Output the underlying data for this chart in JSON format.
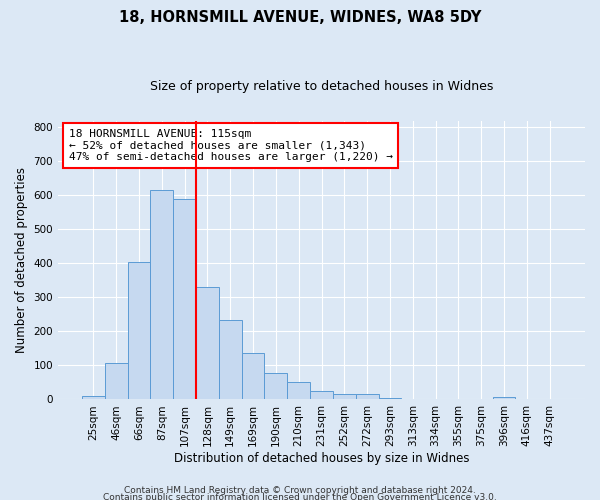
{
  "title": "18, HORNSMILL AVENUE, WIDNES, WA8 5DY",
  "subtitle": "Size of property relative to detached houses in Widnes",
  "xlabel": "Distribution of detached houses by size in Widnes",
  "ylabel": "Number of detached properties",
  "bar_labels": [
    "25sqm",
    "46sqm",
    "66sqm",
    "87sqm",
    "107sqm",
    "128sqm",
    "149sqm",
    "169sqm",
    "190sqm",
    "210sqm",
    "231sqm",
    "252sqm",
    "272sqm",
    "293sqm",
    "313sqm",
    "334sqm",
    "355sqm",
    "375sqm",
    "396sqm",
    "416sqm",
    "437sqm"
  ],
  "bar_values": [
    10,
    107,
    403,
    615,
    590,
    330,
    235,
    137,
    77,
    50,
    26,
    17,
    17,
    5,
    0,
    0,
    0,
    0,
    8,
    0,
    0
  ],
  "bar_color": "#c6d9f0",
  "bar_edge_color": "#5b9bd5",
  "vline_x_index": 4.5,
  "vline_color": "red",
  "ylim": [
    0,
    820
  ],
  "yticks": [
    0,
    100,
    200,
    300,
    400,
    500,
    600,
    700,
    800
  ],
  "annotation_text": "18 HORNSMILL AVENUE: 115sqm\n← 52% of detached houses are smaller (1,343)\n47% of semi-detached houses are larger (1,220) →",
  "annotation_box_color": "#ffffff",
  "annotation_box_edge": "red",
  "footer1": "Contains HM Land Registry data © Crown copyright and database right 2024.",
  "footer2": "Contains public sector information licensed under the Open Government Licence v3.0.",
  "background_color": "#dce8f5",
  "axes_background": "#dce8f5",
  "grid_color": "#ffffff",
  "title_fontsize": 10.5,
  "subtitle_fontsize": 9,
  "ylabel_fontsize": 8.5,
  "xlabel_fontsize": 8.5,
  "tick_fontsize": 7.5,
  "annot_fontsize": 8,
  "footer_fontsize": 6.5
}
